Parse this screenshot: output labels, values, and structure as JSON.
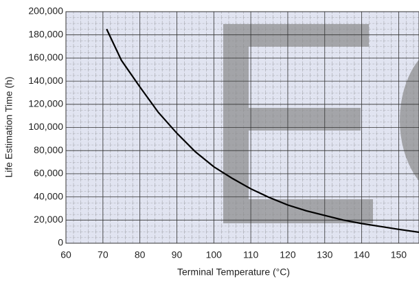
{
  "chart_data": {
    "type": "line",
    "xlabel": "Terminal Temperature (°C)",
    "ylabel": "Life Estimation Time (h)",
    "x": [
      71,
      75,
      80,
      85,
      90,
      95,
      100,
      105,
      110,
      115,
      120,
      125,
      130,
      135,
      140,
      145,
      150,
      155.5
    ],
    "series": [
      {
        "name": "Life estimation",
        "color": "#000000",
        "values": [
          185000,
          158000,
          135000,
          113000,
          95000,
          79000,
          66000,
          56000,
          47000,
          39500,
          33000,
          28000,
          24000,
          20000,
          17000,
          14500,
          12000,
          9500
        ]
      }
    ],
    "xlim": [
      60,
      155.5
    ],
    "xticks": [
      60,
      70,
      80,
      90,
      100,
      110,
      120,
      130,
      140,
      150
    ],
    "ylim": [
      0,
      200000
    ],
    "yticks": [
      0,
      {
        "value": 20000,
        "label": "20,000"
      },
      {
        "value": 40000,
        "label": "40,000"
      },
      {
        "value": 60000,
        "label": "60,000"
      },
      {
        "value": 80000,
        "label": "80,000"
      },
      {
        "value": 100000,
        "label": "100,000"
      },
      {
        "value": 120000,
        "label": "120,000"
      },
      {
        "value": 140000,
        "label": "140,000"
      },
      {
        "value": 160000,
        "label": "160,000"
      },
      {
        "value": 180000,
        "label": "180,000"
      },
      {
        "value": 200000,
        "label": "200,000"
      }
    ],
    "grid": true
  }
}
